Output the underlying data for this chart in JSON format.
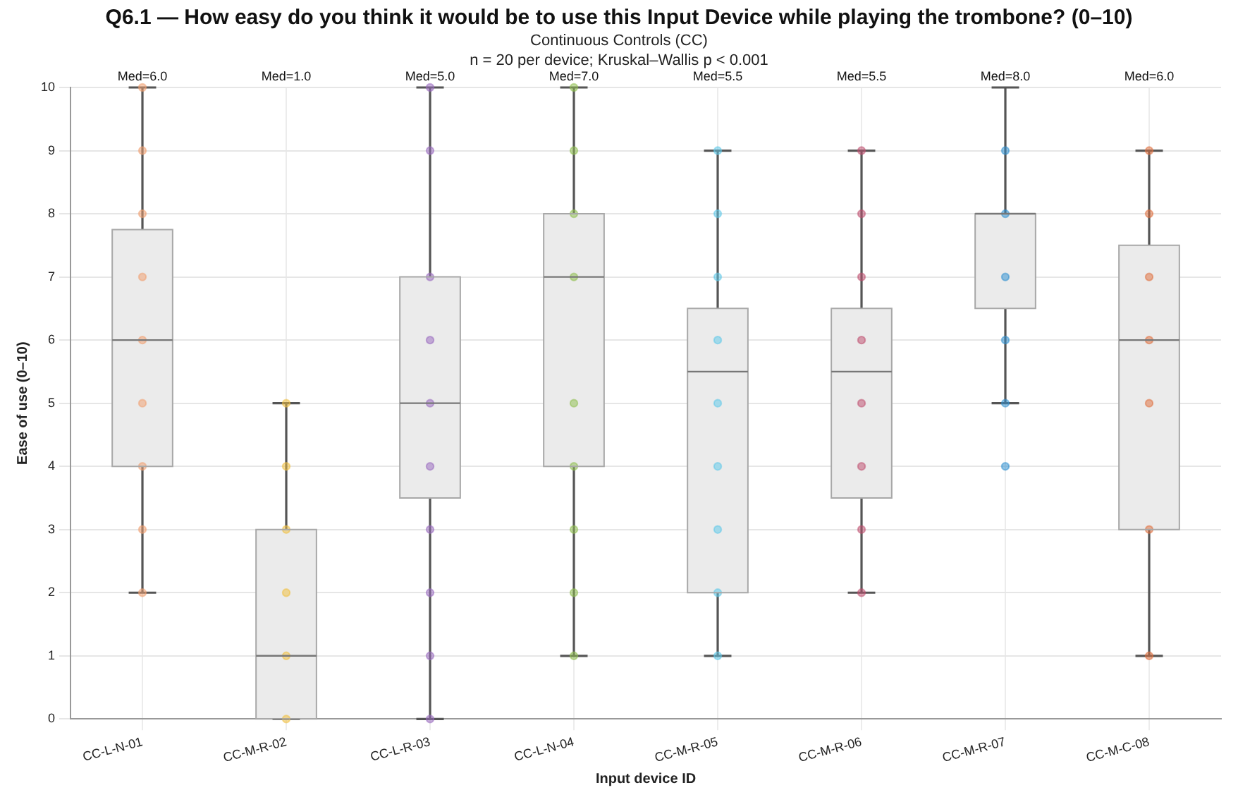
{
  "chart_data": {
    "type": "box",
    "title": "Q6.1 — How easy do you think it would be to use this Input Device while playing the trombone? (0–10)",
    "subtitle": "Continuous Controls (CC)\nn = 20 per device; Kruskal–Wallis p < 0.001",
    "xlabel": "Input device ID",
    "ylabel": "Ease of use (0–10)",
    "categories": [
      "CC-L-N-01",
      "CC-M-R-02",
      "CC-L-R-03",
      "CC-L-N-04",
      "CC-M-R-05",
      "CC-M-R-06",
      "CC-M-R-07",
      "CC-M-C-08"
    ],
    "boxes": [
      {
        "low": 2,
        "q1": 4,
        "median": 6,
        "q3": 7.75,
        "high": 10
      },
      {
        "low": 0,
        "q1": 0,
        "median": 1,
        "q3": 3,
        "high": 5
      },
      {
        "low": 0,
        "q1": 3.5,
        "median": 5,
        "q3": 7,
        "high": 10
      },
      {
        "low": 1,
        "q1": 4,
        "median": 7,
        "q3": 8,
        "high": 10
      },
      {
        "low": 1,
        "q1": 2,
        "median": 5.5,
        "q3": 6.5,
        "high": 9
      },
      {
        "low": 2,
        "q1": 3.5,
        "median": 5.5,
        "q3": 6.5,
        "high": 9
      },
      {
        "low": 5,
        "q1": 6.5,
        "median": 8,
        "q3": 8,
        "high": 10
      },
      {
        "low": 1,
        "q1": 3,
        "median": 6,
        "q3": 7.5,
        "high": 9
      }
    ],
    "color": "#ebebeb",
    "series": [
      {
        "type": "scatter",
        "color": "#f0a070",
        "x": [
          "CC-L-N-01",
          "CC-L-N-01",
          "CC-L-N-01",
          "CC-L-N-01",
          "CC-L-N-01",
          "CC-L-N-01",
          "CC-L-N-01",
          "CC-L-N-01",
          "CC-L-N-01"
        ],
        "values": [
          10,
          9,
          8,
          7,
          6,
          5,
          4,
          3,
          2
        ]
      },
      {
        "type": "scatter",
        "color": "#f0c040",
        "x": [
          "CC-M-R-02",
          "CC-M-R-02",
          "CC-M-R-02",
          "CC-M-R-02",
          "CC-M-R-02",
          "CC-M-R-02"
        ],
        "values": [
          5,
          4,
          3,
          2,
          1,
          0
        ]
      },
      {
        "type": "scatter",
        "color": "#9a6ac0",
        "x": [
          "CC-L-R-03",
          "CC-L-R-03",
          "CC-L-R-03",
          "CC-L-R-03",
          "CC-L-R-03",
          "CC-L-R-03",
          "CC-L-R-03",
          "CC-L-R-03",
          "CC-L-R-03",
          "CC-L-R-03"
        ],
        "values": [
          10,
          9,
          7,
          6,
          5,
          4,
          3,
          2,
          1,
          0
        ]
      },
      {
        "type": "scatter",
        "color": "#90c050",
        "x": [
          "CC-L-N-04",
          "CC-L-N-04",
          "CC-L-N-04",
          "CC-L-N-04",
          "CC-L-N-04",
          "CC-L-N-04",
          "CC-L-N-04",
          "CC-L-N-04",
          "CC-L-N-04"
        ],
        "values": [
          10,
          9,
          8,
          7,
          5,
          4,
          3,
          2,
          1
        ]
      },
      {
        "type": "scatter",
        "color": "#60c8e8",
        "x": [
          "CC-M-R-05",
          "CC-M-R-05",
          "CC-M-R-05",
          "CC-M-R-05",
          "CC-M-R-05",
          "CC-M-R-05",
          "CC-M-R-05",
          "CC-M-R-05",
          "CC-M-R-05"
        ],
        "values": [
          9,
          8,
          7,
          6,
          5,
          4,
          3,
          2,
          1
        ]
      },
      {
        "type": "scatter",
        "color": "#c05070",
        "x": [
          "CC-M-R-06",
          "CC-M-R-06",
          "CC-M-R-06",
          "CC-M-R-06",
          "CC-M-R-06",
          "CC-M-R-06",
          "CC-M-R-06",
          "CC-M-R-06"
        ],
        "values": [
          9,
          8,
          7,
          6,
          5,
          4,
          3,
          2
        ]
      },
      {
        "type": "scatter",
        "color": "#3090d0",
        "x": [
          "CC-M-R-07",
          "CC-M-R-07",
          "CC-M-R-07",
          "CC-M-R-07",
          "CC-M-R-07",
          "CC-M-R-07"
        ],
        "values": [
          9,
          8,
          7,
          6,
          5,
          4
        ]
      },
      {
        "type": "scatter",
        "color": "#e07040",
        "x": [
          "CC-M-C-08",
          "CC-M-C-08",
          "CC-M-C-08",
          "CC-M-C-08",
          "CC-M-C-08",
          "CC-M-C-08",
          "CC-M-C-08"
        ],
        "values": [
          9,
          8,
          7,
          6,
          5,
          3,
          1
        ]
      }
    ],
    "marker": "circle",
    "annotations": [
      "Med=6.0",
      "Med=1.0",
      "Med=5.0",
      "Med=7.0",
      "Med=5.5",
      "Med=5.5",
      "Med=8.0",
      "Med=6.0"
    ],
    "ylim": [
      0,
      10
    ],
    "yticks": [
      0,
      1,
      2,
      3,
      4,
      5,
      6,
      7,
      8,
      9,
      10
    ],
    "grid": true,
    "legend": false
  }
}
